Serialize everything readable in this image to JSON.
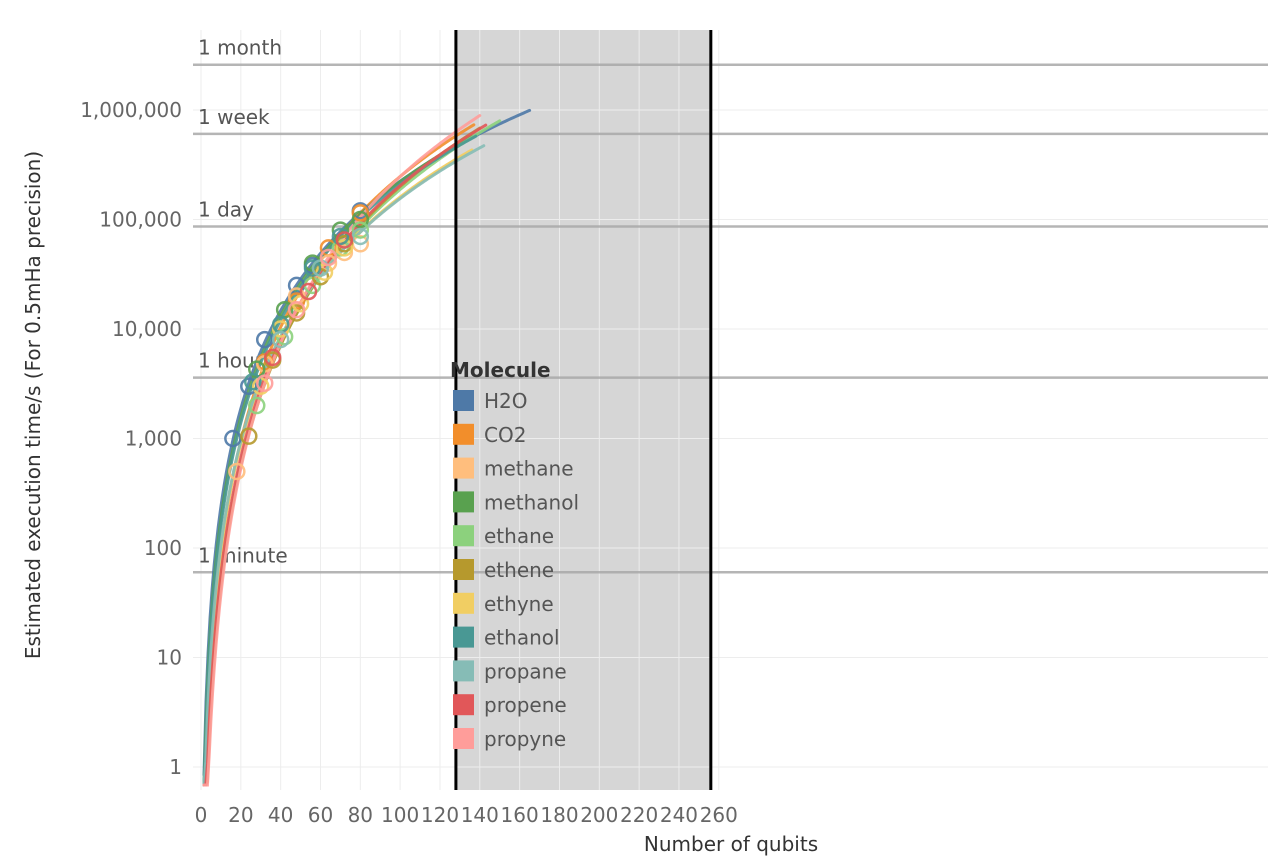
{
  "chart_data": {
    "type": "scatter",
    "xlabel": "Number of qubits",
    "ylabel": "Estimated execution time/s (For 0.5mHa precision)",
    "xlim": [
      -2,
      265
    ],
    "ylim": [
      0.7,
      4000000
    ],
    "y_scale": "log",
    "x_ticks": [
      0,
      20,
      40,
      60,
      80,
      100,
      120,
      140,
      160,
      180,
      200,
      220,
      240,
      260
    ],
    "x_tick_labels": [
      "0",
      "20",
      "40",
      "60",
      "80",
      "100",
      "120",
      "140",
      "160",
      "180",
      "200",
      "220",
      "240",
      "260"
    ],
    "y_ticks": [
      1,
      10,
      100,
      1000,
      10000,
      100000,
      1000000
    ],
    "y_tick_labels": [
      "1",
      "10",
      "100",
      "1,000",
      "10,000",
      "100,000",
      "1,000,000"
    ],
    "grid": true,
    "shaded_region": {
      "x_from": 128,
      "x_to": 256
    },
    "reference_lines": [
      {
        "label": "1 minute",
        "value": 60
      },
      {
        "label": "1 hour",
        "value": 3600
      },
      {
        "label": "1 day",
        "value": 86400
      },
      {
        "label": "1 week",
        "value": 604800
      },
      {
        "label": "1 month",
        "value": 2592000
      }
    ],
    "legend": {
      "title": "Molecule",
      "position": "center"
    },
    "series": [
      {
        "name": "H2O",
        "color": "#4e79a7",
        "curve_x_max": 165,
        "points": [
          [
            16,
            1000
          ],
          [
            24,
            3000
          ],
          [
            32,
            8000
          ],
          [
            48,
            25000
          ],
          [
            56,
            38000
          ],
          [
            80,
            120000
          ]
        ]
      },
      {
        "name": "CO2",
        "color": "#f28e2b",
        "curve_x_max": 137,
        "points": [
          [
            32,
            5000
          ],
          [
            48,
            18000
          ],
          [
            64,
            55000
          ],
          [
            80,
            115000
          ]
        ]
      },
      {
        "name": "methane",
        "color": "#ffbe7d",
        "curve_x_max": 133,
        "points": [
          [
            18,
            500
          ],
          [
            32,
            4800
          ],
          [
            48,
            20000
          ],
          [
            64,
            40000
          ],
          [
            72,
            50000
          ],
          [
            80,
            60000
          ]
        ]
      },
      {
        "name": "methanol",
        "color": "#59a14f",
        "curve_x_max": 136,
        "points": [
          [
            28,
            4300
          ],
          [
            42,
            15000
          ],
          [
            56,
            40000
          ],
          [
            70,
            80000
          ],
          [
            80,
            100000
          ]
        ]
      },
      {
        "name": "ethane",
        "color": "#8cd17d",
        "curve_x_max": 150,
        "points": [
          [
            28,
            2000
          ],
          [
            42,
            8500
          ],
          [
            56,
            25000
          ],
          [
            70,
            55000
          ],
          [
            80,
            80000
          ]
        ]
      },
      {
        "name": "ethene",
        "color": "#b6992d",
        "curve_x_max": 140,
        "points": [
          [
            24,
            1050
          ],
          [
            36,
            5200
          ],
          [
            48,
            14000
          ],
          [
            60,
            30000
          ],
          [
            72,
            60000
          ]
        ]
      },
      {
        "name": "ethyne",
        "color": "#f1ce63",
        "curve_x_max": 136,
        "points": [
          [
            30,
            3000
          ],
          [
            40,
            10000
          ],
          [
            50,
            17000
          ],
          [
            62,
            33000
          ],
          [
            72,
            55000
          ]
        ]
      },
      {
        "name": "ethanol",
        "color": "#499894",
        "curve_x_max": 138,
        "points": [
          [
            26,
            3300
          ],
          [
            40,
            11000
          ],
          [
            56,
            36000
          ],
          [
            70,
            70000
          ]
        ]
      },
      {
        "name": "propane",
        "color": "#86bcb6",
        "curve_x_max": 142,
        "points": [
          [
            40,
            8000
          ],
          [
            60,
            36000
          ],
          [
            80,
            70000
          ]
        ]
      },
      {
        "name": "propene",
        "color": "#e15759",
        "curve_x_max": 143,
        "points": [
          [
            36,
            5500
          ],
          [
            54,
            22000
          ],
          [
            72,
            65000
          ]
        ]
      },
      {
        "name": "propyne",
        "color": "#ff9d9a",
        "curve_x_max": 140,
        "points": [
          [
            32,
            3200
          ],
          [
            48,
            15000
          ],
          [
            64,
            45000
          ]
        ]
      }
    ]
  }
}
